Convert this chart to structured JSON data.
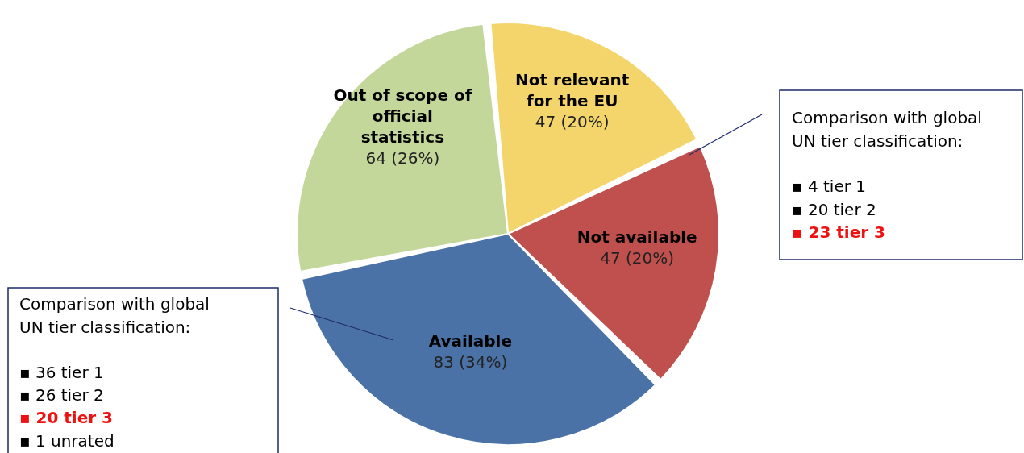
{
  "chart_data": {
    "type": "pie",
    "categories": [
      "Not relevant for the EU",
      "Not available",
      "Available",
      "Out of scope of official statistics"
    ],
    "values": [
      47,
      47,
      83,
      64
    ],
    "colors": [
      "#f3d56b",
      "#c0504d",
      "#4a72a6",
      "#c4d79b"
    ],
    "value_labels": [
      "47 (20%)",
      "47 (20%)",
      "83 (34%)",
      "64 (26%)"
    ],
    "annotations": [
      "Comparison with global",
      "UN tier classification:",
      "▪  4  tier 1",
      "▪ 20  tier 2",
      "▪ 23 tier 3",
      "Comparison with global",
      "UN tier classification:",
      "▪ 36  tier 1",
      "▪ 26  tier 2",
      "▪ 20 tier 3",
      "▪   1  unrated"
    ]
  }
}
